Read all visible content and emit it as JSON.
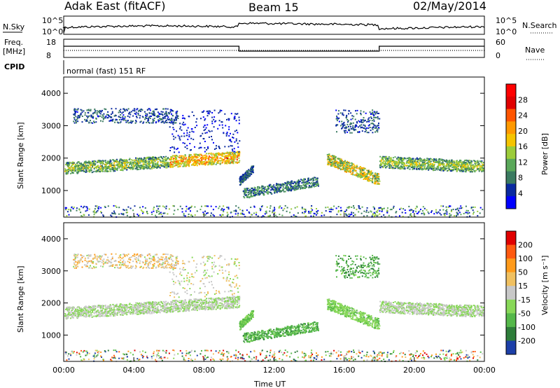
{
  "header": {
    "title": "Adak East (fitACF)",
    "beam": "Beam 15",
    "date": "02/May/2014"
  },
  "top_panels": {
    "nsky_label": "N.Sky",
    "nsearch_label": "N.Search",
    "noise_ticks_left": [
      "10^5",
      "10^0"
    ],
    "noise_ticks_right": [
      "10^5",
      "10^0"
    ],
    "freq_label_line1": "Freq.",
    "freq_label_line2": "[MHz]",
    "freq_ticks": [
      "18",
      "8"
    ],
    "nave_label": "Nave",
    "nave_ticks": [
      "60",
      "0"
    ],
    "cpid_label": "CPID",
    "cpid_text": "normal (fast) 151 RF"
  },
  "chart_data": [
    {
      "type": "heatmap",
      "name": "power",
      "ylabel": "Slant Range [km]",
      "yticks": [
        "1000",
        "2000",
        "3000",
        "4000"
      ],
      "ylim": [
        180,
        4500
      ],
      "xlabel": "Time UT",
      "xticks": [
        "00:00",
        "04:00",
        "08:00",
        "12:00",
        "16:00",
        "20:00",
        "00:00"
      ],
      "xlim_hours": [
        0,
        24
      ],
      "colorbar": {
        "label": "Power [dB]",
        "ticks": [
          "4",
          "8",
          "12",
          "16",
          "20",
          "24",
          "28"
        ],
        "colors": [
          "#0000ff",
          "#0a2aa0",
          "#3a7a60",
          "#5aa85a",
          "#9ccc3a",
          "#f5c400",
          "#ff9900",
          "#ff5500",
          "#e00000",
          "#ff0000"
        ]
      },
      "scatter_regions": [
        {
          "t": [
            0.0,
            10.0
          ],
          "range_km": [
            1500,
            2100
          ],
          "value": "mid-power band"
        },
        {
          "t": [
            0.3,
            6.5
          ],
          "range_km": [
            3000,
            3600
          ],
          "value": "low-power band"
        },
        {
          "t": [
            10.0,
            10.8
          ],
          "range_km": [
            1200,
            2000
          ],
          "value": "low-power"
        },
        {
          "t": [
            10.0,
            14.5
          ],
          "range_km": [
            800,
            1400
          ],
          "value": "low-power"
        },
        {
          "t": [
            14.5,
            18.0
          ],
          "range_km": [
            1200,
            2100
          ],
          "value": "mid/high-power"
        },
        {
          "t": [
            18.0,
            24.0
          ],
          "range_km": [
            1600,
            2200
          ],
          "value": "mid-power band"
        }
      ]
    },
    {
      "type": "heatmap",
      "name": "velocity",
      "ylabel": "Slant Range [km]",
      "yticks": [
        "1000",
        "2000",
        "3000",
        "4000"
      ],
      "ylim": [
        180,
        4500
      ],
      "xlabel": "Time UT",
      "xticks": [
        "00:00",
        "04:00",
        "08:00",
        "12:00",
        "16:00",
        "20:00",
        "00:00"
      ],
      "xlim_hours": [
        0,
        24
      ],
      "colorbar": {
        "label": "Velocity [m s⁻¹]",
        "ticks": [
          "200",
          "100",
          "50",
          "15",
          "-15",
          "-50",
          "-100",
          "-200"
        ],
        "colors": [
          "#1c3fa8",
          "#2e7d3a",
          "#55b84a",
          "#88d858",
          "#c8c8c8",
          "#f0c060",
          "#ff9a1a",
          "#ff5a10",
          "#e00000"
        ]
      }
    }
  ]
}
